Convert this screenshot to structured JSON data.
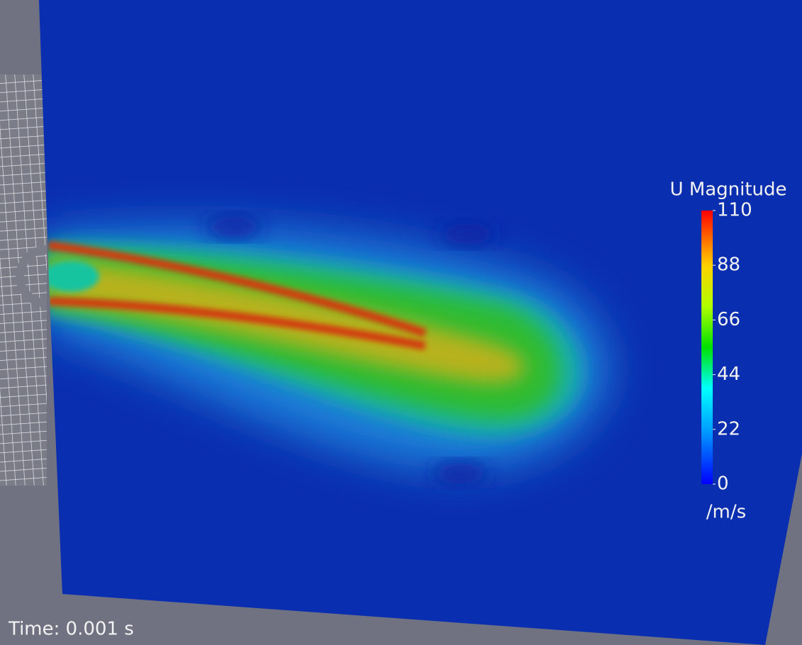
{
  "colorbar": {
    "title": "U Magnitude",
    "range": [
      0,
      110
    ],
    "ticks": [
      0,
      22,
      44,
      66,
      88,
      110
    ],
    "unit": "/m/s"
  },
  "time_label": "Time: 0.001 s"
}
